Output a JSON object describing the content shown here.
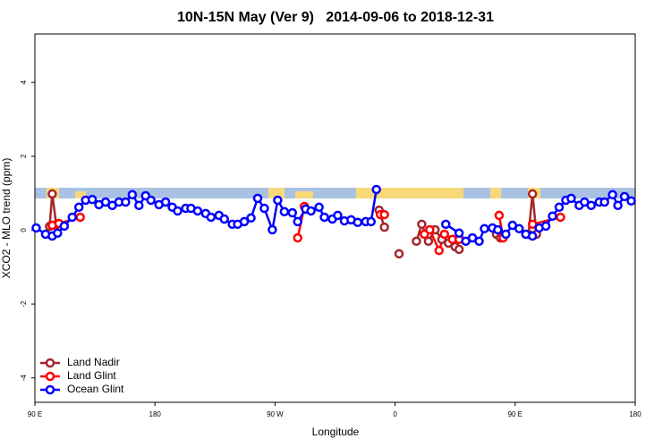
{
  "chart_data": {
    "type": "line",
    "title": "10N-15N May (Ver 9)   2014-09-06 to 2018-12-31",
    "x_label": "Longitude",
    "y_label": "XCO2 - MLO trend (ppm)",
    "xlim": [
      90,
      540
    ],
    "xticks": [
      {
        "value": 90,
        "label": "90 E"
      },
      180,
      {
        "value": 270,
        "label": "90 W"
      },
      {
        "value": 360,
        "label": "0"
      },
      {
        "value": 450,
        "label": "90 E"
      },
      180
    ],
    "ylim": [
      -4.66,
      5.31
    ],
    "yticks": [
      -4,
      -2,
      0,
      2,
      4
    ],
    "legend": "bottom-left",
    "series": [
      {
        "name": "Land Nadir",
        "color": "#a3262b",
        "x": [
          101,
          103,
          106,
          null,
          348,
          352,
          null,
          363,
          null,
          376,
          380,
          385,
          390,
          395,
          400,
          405,
          408,
          null,
          436,
          439,
          null,
          460,
          463,
          466
        ],
        "values": [
          0.1,
          0.98,
          0.15,
          null,
          0.54,
          0.08,
          null,
          -0.64,
          null,
          -0.3,
          0.16,
          -0.3,
          0.01,
          -0.25,
          -0.35,
          -0.45,
          -0.52,
          null,
          -0.11,
          -0.21,
          null,
          -0.11,
          0.98,
          -0.11
        ]
      },
      {
        "name": "Land Glint",
        "color": "#ff0000",
        "x": [
          103,
          108,
          124,
          null,
          287,
          292,
          null,
          349,
          352,
          null,
          382,
          386,
          393,
          397,
          403,
          408,
          null,
          438,
          441,
          null,
          463,
          484
        ],
        "values": [
          0.13,
          0.18,
          0.35,
          null,
          -0.21,
          0.64,
          null,
          0.42,
          0.42,
          null,
          -0.11,
          0.01,
          -0.55,
          -0.11,
          -0.25,
          -0.25,
          null,
          0.4,
          -0.21,
          null,
          0.16,
          0.35
        ]
      },
      {
        "name": "Ocean Glint",
        "color": "#0000ff",
        "x": [
          91,
          98,
          103,
          107,
          112,
          118,
          123,
          128,
          133,
          138,
          143,
          148,
          153,
          158,
          163,
          168,
          173,
          177,
          183,
          188,
          193,
          197,
          203,
          207,
          212,
          218,
          222,
          228,
          232,
          238,
          242,
          247,
          252,
          257,
          262,
          268,
          272,
          277,
          283,
          287,
          293,
          297,
          303,
          307,
          313,
          317,
          322,
          327,
          332,
          338,
          342,
          346,
          null,
          398,
          408,
          413,
          418,
          423,
          427,
          433,
          437,
          443,
          448,
          453,
          458,
          463,
          468,
          473,
          478,
          483,
          488,
          492,
          498,
          502,
          507,
          513,
          517,
          523,
          527,
          532,
          537
        ],
        "values": [
          0.06,
          -0.11,
          -0.16,
          -0.08,
          0.11,
          0.35,
          0.62,
          0.81,
          0.83,
          0.69,
          0.76,
          0.67,
          0.76,
          0.76,
          0.96,
          0.67,
          0.93,
          0.81,
          0.69,
          0.76,
          0.62,
          0.52,
          0.59,
          0.59,
          0.52,
          0.45,
          0.35,
          0.4,
          0.3,
          0.16,
          0.16,
          0.23,
          0.33,
          0.86,
          0.59,
          0.01,
          0.81,
          0.5,
          0.47,
          0.23,
          0.57,
          0.52,
          0.62,
          0.35,
          0.3,
          0.4,
          0.25,
          0.28,
          0.21,
          0.23,
          0.23,
          1.1,
          null,
          0.16,
          -0.08,
          -0.3,
          -0.21,
          -0.3,
          0.04,
          0.06,
          0.01,
          -0.11,
          0.13,
          0.04,
          -0.11,
          -0.16,
          0.06,
          0.11,
          0.38,
          0.62,
          0.81,
          0.86,
          0.67,
          0.76,
          0.67,
          0.76,
          0.76,
          0.96,
          0.67,
          0.91,
          0.79
        ]
      }
    ]
  }
}
